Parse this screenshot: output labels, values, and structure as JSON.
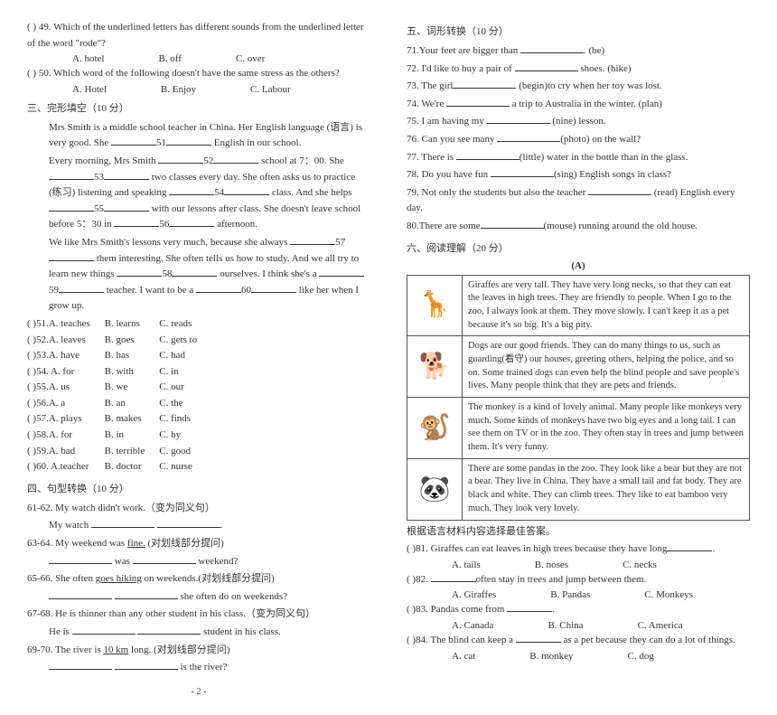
{
  "left": {
    "q49_prefix": "(       ) 49.",
    "q49_text": "Which of the underlined letters has different sounds from the underlined letter of the word \"rode\"?",
    "q49_a": "A. hotel",
    "q49_b": "B. off",
    "q49_c": "C. over",
    "q50_prefix": "(       ) 50.",
    "q50_text": "Which word of the following doesn't have the same stress as the others?",
    "q50_a": "A. Hotel",
    "q50_b": "B. Enjoy",
    "q50_c": "C. Labour",
    "sec3": "三、完形填空（10 分）",
    "p1a": "Mrs Smith is a middle school teacher in China. Her English language (语言) is very good. She ",
    "p1b": " English in our school.",
    "p2a": "Every morning, Mrs Smith ",
    "p2b": " school at 7：00. She ",
    "p2c": " two classes every day. She often asks us to practice (练习) listening and speaking ",
    "p2d": " class. And she helps ",
    "p2e": " with our lessons after class. She doesn't leave school before 5：30 in ",
    "p2f": " afternoon.",
    "p3a": "We like Mrs Smith's lessons very much, because she always ",
    "p3b": " them interesting. She often tells us how to study. And we all try to learn new things ",
    "p3c": " ourselves. I think she's a ",
    "p3d": " teacher. I want to be a ",
    "p3e": " like her when I grow up.",
    "n51": "51",
    "n52": "52",
    "n53": "53",
    "n54": "54",
    "n55": "55",
    "n56": "56",
    "n57": "57",
    "n58": "58",
    "n59": "59",
    "n60": "60",
    "tbl": [
      [
        "(    )51.A. teaches",
        "B. learns",
        "C. reads"
      ],
      [
        "(    )52.A. leaves",
        "B. goes",
        "C. gets to"
      ],
      [
        "(    )53.A. have",
        "B. has",
        "C. had"
      ],
      [
        "(    )54. A. for",
        "B. with",
        "C. in"
      ],
      [
        "(    )55.A. us",
        "B. we",
        "C. our"
      ],
      [
        "(    )56.A. a",
        "B. an",
        "C. the"
      ],
      [
        "(    )57.A. plays",
        "B. makes",
        "C. finds"
      ],
      [
        "(    )58.A. for",
        "B. in",
        "C. by"
      ],
      [
        "(    )59.A. bad",
        "B. terrible",
        "C. good"
      ],
      [
        "(    )60. A.teacher",
        "B. doctor",
        "C. nurse"
      ]
    ],
    "sec4": "四、句型转换（10 分）",
    "q61": "61-62. My watch didn't work.（变为同义句）",
    "q61b": "My watch ",
    "q63": "63-64. My weekend was ",
    "q63_fine": "fine.",
    "q63_tag": "(对划线部分提问)",
    "q63b_a": " was ",
    "q63b_b": " weekend?",
    "q65": "65-66. She often ",
    "q65_u": "goes hiking",
    "q65_tail": " on weekends.(对划线部分提问)",
    "q65b": "she often do on weekends?",
    "q67": "67-68. He is thinner than any other student in his class.（变为同义句）",
    "q67b_a": "He is ",
    "q67b_b": " student in his class.",
    "q69": "69-70. The river is ",
    "q69_u": "10 km",
    "q69_tail": " long.    (对划线部分提问)",
    "q69b": "is the river?"
  },
  "right": {
    "sec5": "五、词形转换（10 分）",
    "l71a": "71.Your feet are bigger than ",
    "l71b": ". (be)",
    "l72a": "72. I'd like to buy a pair of ",
    "l72b": " shoes. (hike)",
    "l73a": "73. The girl",
    "l73b": " (begin)to cry when her toy was lost.",
    "l74a": "74. We're ",
    "l74b": " a trip to Australia in the winter. (plan)",
    "l75a": "75. I am having my ",
    "l75b": " (nine) lesson.",
    "l76a": "76. Can you see many ",
    "l76b": "(photo) on the wall?",
    "l77a": "77. There is ",
    "l77b": "(little) water in the bottle than in the glass.",
    "l78a": "78. Do you have fun ",
    "l78b": "(sing) English songs in class?",
    "l79a": "79. Not only the students but also the teacher ",
    "l79b": " (read) English every day.",
    "l80a": "80.There are some",
    "l80b": "(mouse) running around the old house.",
    "sec6": "六、阅读理解（20 分）",
    "rt": "(A)",
    "box": [
      "Giraffes are very tall. They have very long necks, so that they can eat the leaves in high trees. They are friendly to people. When I go to the zoo, I always look at them. They move slowly. I can't keep it as a pet because it's so big. It's a big pity.",
      "Dogs are our good friends. They can do many things to us, such as guarding(看守) our houses, greeting others, helping the police, and so on. Some trained dogs can even help the blind people and save people's lives. Many people think that they are pets and friends.",
      "The monkey is a kind of lovely animal. Many people like monkeys very much. Some kinds of monkeys have two big eyes and a long tail. I can see them on TV or in the zoo. They often stay in trees and jump between them. It's very funny.",
      "There are some pandas in the zoo. They look like a bear but they are not a bear. They live in China. They have a small tail and fat body. They are black and white. They can climb trees. They like to eat bamboo very much. They look very lovely."
    ],
    "icons": [
      "🦒",
      "🐕",
      "🐒",
      "🐼"
    ],
    "pre": "根据语言材料内容选择最佳答案。",
    "q81": "(    )81. Giraffes can eat leaves in high trees because they have long",
    "q81a": "A. tails",
    "q81b": "B. noses",
    "q81c": "C. necks",
    "q82": "(    )82. ",
    "q82tail": "often stay in trees and jump between them.",
    "q82a": "A. Giraffes",
    "q82b": "B. Pandas",
    "q82c": "C. Monkeys",
    "q83": "(    )83. Pandas come from ",
    "q83a": "A. Canada",
    "q83b": "B. China",
    "q83c": "C. America",
    "q84": "(    )84. The blind can keep a ",
    "q84tail": " as a pet because they can do a lot of things.",
    "q84a": "A. cat",
    "q84b": "B. monkey",
    "q84c": "C. dog"
  },
  "page": "- 2 -"
}
